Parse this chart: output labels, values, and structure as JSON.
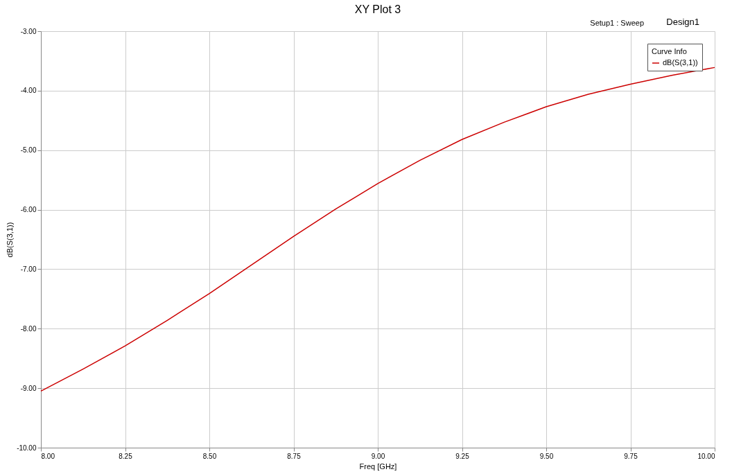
{
  "chart_data": {
    "type": "line",
    "title": "XY Plot 3",
    "subtitle": "Design1",
    "xlabel": "Freq [GHz]",
    "ylabel": "dB(S(3,1))",
    "legend_title": "Curve Info",
    "annotations": [
      "Setup1 : Sweep"
    ],
    "x": [
      8.0,
      8.125,
      8.25,
      8.375,
      8.5,
      8.625,
      8.75,
      8.875,
      9.0,
      9.125,
      9.25,
      9.375,
      9.5,
      9.625,
      9.75,
      9.875,
      10.0
    ],
    "series": [
      {
        "name": "dB(S(3,1))",
        "color": "#cc0000",
        "values": [
          -9.05,
          -8.68,
          -8.29,
          -7.86,
          -7.41,
          -6.93,
          -6.45,
          -5.99,
          -5.56,
          -5.17,
          -4.82,
          -4.53,
          -4.27,
          -4.06,
          -3.89,
          -3.74,
          -3.61
        ]
      }
    ],
    "xlim": [
      8.0,
      10.0
    ],
    "ylim": [
      -10.0,
      -3.0
    ],
    "xticks": [
      {
        "value": 8.0,
        "label": "8.00"
      },
      {
        "value": 8.25,
        "label": "8.25"
      },
      {
        "value": 8.5,
        "label": "8.50"
      },
      {
        "value": 8.75,
        "label": "8.75"
      },
      {
        "value": 9.0,
        "label": "9.00"
      },
      {
        "value": 9.25,
        "label": "9.25"
      },
      {
        "value": 9.5,
        "label": "9.50"
      },
      {
        "value": 9.75,
        "label": "9.75"
      },
      {
        "value": 10.0,
        "label": "10.00"
      }
    ],
    "yticks": [
      {
        "value": -10.0,
        "label": "-10.00"
      },
      {
        "value": -9.0,
        "label": "-9.00"
      },
      {
        "value": -8.0,
        "label": "-8.00"
      },
      {
        "value": -7.0,
        "label": "-7.00"
      },
      {
        "value": -6.0,
        "label": "-6.00"
      },
      {
        "value": -5.0,
        "label": "-5.00"
      },
      {
        "value": -4.0,
        "label": "-4.00"
      },
      {
        "value": -3.0,
        "label": "-3.00"
      }
    ],
    "grid": true,
    "legend": "top right",
    "line_style": "solid",
    "marker": "none"
  }
}
